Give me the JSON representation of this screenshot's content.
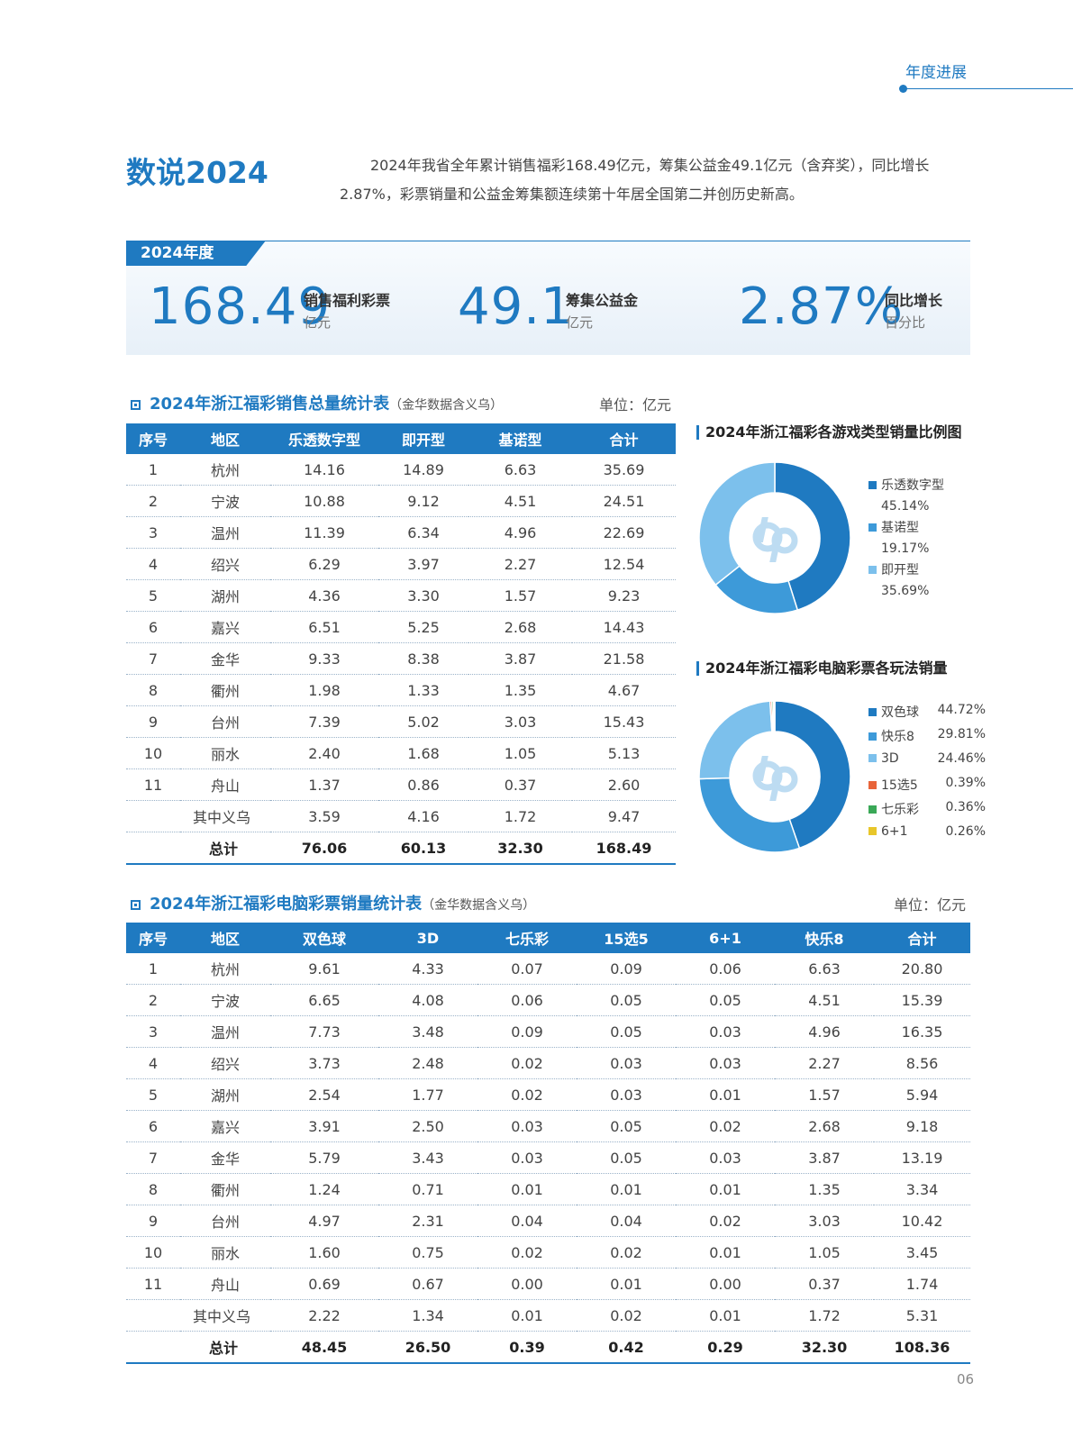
{
  "header": {
    "section_tag": "年度进展"
  },
  "page_title": "数说2024",
  "intro": "2024年我省全年累计销售福彩168.49亿元，筹集公益金49.1亿元（含弃奖），同比增长2.87%，彩票销量和公益金筹集额连续第十年居全国第二并创历史新高。",
  "band": {
    "label": "2024年度",
    "stats": [
      {
        "value": "168.49",
        "label": "销售福利彩票",
        "unit": "亿元"
      },
      {
        "value": "49.1",
        "label": "筹集公益金",
        "unit": "亿元"
      },
      {
        "value": "2.87%",
        "label": "同比增长",
        "unit": "百分比"
      }
    ]
  },
  "table1": {
    "title": "2024年浙江福彩销售总量统计表",
    "note": "（金华数据含义乌）",
    "unit": "单位：亿元",
    "headers": [
      "序号",
      "地区",
      "乐透数字型",
      "即开型",
      "基诺型",
      "合计"
    ],
    "rows": [
      [
        "1",
        "杭州",
        "14.16",
        "14.89",
        "6.63",
        "35.69"
      ],
      [
        "2",
        "宁波",
        "10.88",
        "9.12",
        "4.51",
        "24.51"
      ],
      [
        "3",
        "温州",
        "11.39",
        "6.34",
        "4.96",
        "22.69"
      ],
      [
        "4",
        "绍兴",
        "6.29",
        "3.97",
        "2.27",
        "12.54"
      ],
      [
        "5",
        "湖州",
        "4.36",
        "3.30",
        "1.57",
        "9.23"
      ],
      [
        "6",
        "嘉兴",
        "6.51",
        "5.25",
        "2.68",
        "14.43"
      ],
      [
        "7",
        "金华",
        "9.33",
        "8.38",
        "3.87",
        "21.58"
      ],
      [
        "8",
        "衢州",
        "1.98",
        "1.33",
        "1.35",
        "4.67"
      ],
      [
        "9",
        "台州",
        "7.39",
        "5.02",
        "3.03",
        "15.43"
      ],
      [
        "10",
        "丽水",
        "2.40",
        "1.68",
        "1.05",
        "5.13"
      ],
      [
        "11",
        "舟山",
        "1.37",
        "0.86",
        "0.37",
        "2.60"
      ]
    ],
    "sub_row": {
      "label": "其中义乌",
      "values": [
        "3.59",
        "4.16",
        "1.72",
        "9.47"
      ]
    },
    "total_row": {
      "label": "总计",
      "values": [
        "76.06",
        "60.13",
        "32.30",
        "168.49"
      ]
    }
  },
  "table2": {
    "title": "2024年浙江福彩电脑彩票销量统计表",
    "note": "（金华数据含义乌）",
    "unit": "单位：亿元",
    "headers": [
      "序号",
      "地区",
      "双色球",
      "3D",
      "七乐彩",
      "15选5",
      "6+1",
      "快乐8",
      "合计"
    ],
    "rows": [
      [
        "1",
        "杭州",
        "9.61",
        "4.33",
        "0.07",
        "0.09",
        "0.06",
        "6.63",
        "20.80"
      ],
      [
        "2",
        "宁波",
        "6.65",
        "4.08",
        "0.06",
        "0.05",
        "0.05",
        "4.51",
        "15.39"
      ],
      [
        "3",
        "温州",
        "7.73",
        "3.48",
        "0.09",
        "0.05",
        "0.03",
        "4.96",
        "16.35"
      ],
      [
        "4",
        "绍兴",
        "3.73",
        "2.48",
        "0.02",
        "0.03",
        "0.03",
        "2.27",
        "8.56"
      ],
      [
        "5",
        "湖州",
        "2.54",
        "1.77",
        "0.02",
        "0.03",
        "0.01",
        "1.57",
        "5.94"
      ],
      [
        "6",
        "嘉兴",
        "3.91",
        "2.50",
        "0.03",
        "0.05",
        "0.02",
        "2.68",
        "9.18"
      ],
      [
        "7",
        "金华",
        "5.79",
        "3.43",
        "0.03",
        "0.05",
        "0.03",
        "3.87",
        "13.19"
      ],
      [
        "8",
        "衢州",
        "1.24",
        "0.71",
        "0.01",
        "0.01",
        "0.01",
        "1.35",
        "3.34"
      ],
      [
        "9",
        "台州",
        "4.97",
        "2.31",
        "0.04",
        "0.04",
        "0.02",
        "3.03",
        "10.42"
      ],
      [
        "10",
        "丽水",
        "1.60",
        "0.75",
        "0.02",
        "0.02",
        "0.01",
        "1.05",
        "3.45"
      ],
      [
        "11",
        "舟山",
        "0.69",
        "0.67",
        "0.00",
        "0.01",
        "0.00",
        "0.37",
        "1.74"
      ]
    ],
    "sub_row": {
      "label": "其中义乌",
      "values": [
        "2.22",
        "1.34",
        "0.01",
        "0.02",
        "0.01",
        "1.72",
        "5.31"
      ]
    },
    "total_row": {
      "label": "总计",
      "values": [
        "48.45",
        "26.50",
        "0.39",
        "0.42",
        "0.29",
        "32.30",
        "108.36"
      ]
    }
  },
  "chart_data": [
    {
      "type": "pie",
      "donut": true,
      "title": "2024年浙江福彩各游戏类型销量比例图",
      "legend_position": "right",
      "series": [
        {
          "name": "乐透数字型",
          "label": "45.14%",
          "value": 45.14,
          "color": "#1f7ac1"
        },
        {
          "name": "基诺型",
          "label": "19.17%",
          "value": 19.17,
          "color": "#3d9ad9"
        },
        {
          "name": "即开型",
          "label": "35.69%",
          "value": 35.69,
          "color": "#7cc0ec"
        }
      ]
    },
    {
      "type": "pie",
      "donut": true,
      "title": "2024年浙江福彩电脑彩票各玩法销量",
      "legend_position": "right",
      "series": [
        {
          "name": "双色球",
          "label": "44.72%",
          "value": 44.72,
          "color": "#1f7ac1"
        },
        {
          "name": "快乐8",
          "label": "29.81%",
          "value": 29.81,
          "color": "#3d9ad9"
        },
        {
          "name": "3D",
          "label": "24.46%",
          "value": 24.46,
          "color": "#7cc0ec"
        },
        {
          "name": "15选5",
          "label": "0.39%",
          "value": 0.39,
          "color": "#e8643a"
        },
        {
          "name": "七乐彩",
          "label": "0.36%",
          "value": 0.36,
          "color": "#3aa857"
        },
        {
          "name": "6+1",
          "label": "0.26%",
          "value": 0.26,
          "color": "#e8c62a"
        }
      ]
    }
  ],
  "page_number": "06"
}
